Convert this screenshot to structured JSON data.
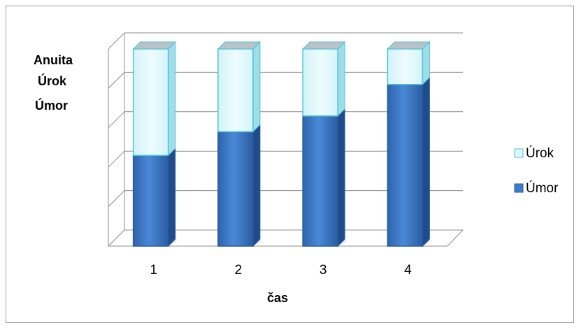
{
  "chart_data": {
    "type": "bar",
    "stacked": true,
    "three_d": true,
    "categories": [
      "1",
      "2",
      "3",
      "4"
    ],
    "series": [
      {
        "name": "Úmor",
        "values": [
          0.46,
          0.58,
          0.66,
          0.82
        ],
        "color": "#3d7cc9"
      },
      {
        "name": "Úrok",
        "values": [
          0.54,
          0.42,
          0.34,
          0.18
        ],
        "color": "#ddf7fb"
      }
    ],
    "ylabel_lines": [
      "Anuita",
      "Úrok",
      "Úmor"
    ],
    "xlabel": "čas",
    "ylim": [
      0,
      1
    ],
    "gridlines": true,
    "legend_position": "right"
  }
}
